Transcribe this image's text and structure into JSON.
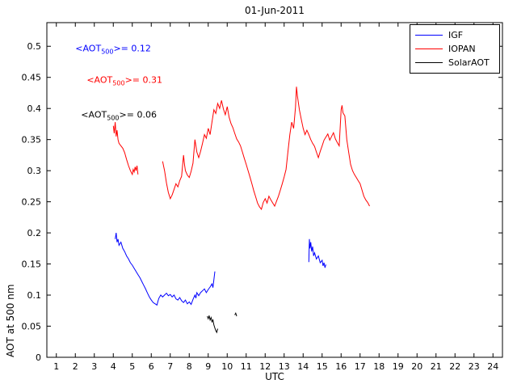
{
  "chart_data": {
    "type": "line",
    "title": "01-Jun-2011",
    "xlabel": "UTC",
    "ylabel": "AOT at 500 nm",
    "xlim": [
      0.5,
      24.5
    ],
    "ylim": [
      0,
      0.538
    ],
    "grid": false,
    "legend_position": "northeast",
    "xtick_labels": [
      "1",
      "2",
      "3",
      "4",
      "5",
      "6",
      "7",
      "8",
      "9",
      "10",
      "11",
      "12",
      "13",
      "14",
      "15",
      "16",
      "17",
      "18",
      "19",
      "20",
      "21",
      "22",
      "23",
      "24"
    ],
    "xtick_values": [
      1,
      2,
      3,
      4,
      5,
      6,
      7,
      8,
      9,
      10,
      11,
      12,
      13,
      14,
      15,
      16,
      17,
      18,
      19,
      20,
      21,
      22,
      23,
      24
    ],
    "ytick_labels": [
      "0",
      "0.05",
      "0.1",
      "0.15",
      "0.2",
      "0.25",
      "0.3",
      "0.35",
      "0.4",
      "0.45",
      "0.5"
    ],
    "ytick_values": [
      0,
      0.05,
      0.1,
      0.15,
      0.2,
      0.25,
      0.3,
      0.35,
      0.4,
      0.45,
      0.5
    ],
    "annotations": [
      {
        "prefix": "<AOT",
        "sub": "500",
        "suffix": ">= 0.12",
        "x": 2.0,
        "y": 0.495,
        "color": "#0000ff"
      },
      {
        "prefix": "<AOT",
        "sub": "500",
        "suffix": ">= 0.31",
        "x": 2.6,
        "y": 0.445,
        "color": "#ff0000"
      },
      {
        "prefix": "<AOT",
        "sub": "500",
        "suffix": ">= 0.06",
        "x": 2.3,
        "y": 0.389,
        "color": "#000000"
      }
    ],
    "series": [
      {
        "name": "IGF",
        "color": "#0000ff",
        "segments": [
          [
            [
              4.1,
              0.19
            ],
            [
              4.15,
              0.2
            ],
            [
              4.2,
              0.185
            ],
            [
              4.25,
              0.19
            ],
            [
              4.3,
              0.18
            ],
            [
              4.4,
              0.185
            ],
            [
              4.5,
              0.175
            ],
            [
              4.6,
              0.17
            ],
            [
              4.7,
              0.163
            ],
            [
              4.8,
              0.158
            ],
            [
              4.9,
              0.152
            ],
            [
              5.0,
              0.148
            ],
            [
              5.1,
              0.143
            ],
            [
              5.2,
              0.138
            ],
            [
              5.3,
              0.133
            ],
            [
              5.4,
              0.128
            ],
            [
              5.5,
              0.122
            ],
            [
              5.6,
              0.116
            ],
            [
              5.7,
              0.11
            ],
            [
              5.8,
              0.103
            ],
            [
              5.9,
              0.097
            ],
            [
              6.0,
              0.092
            ],
            [
              6.1,
              0.088
            ],
            [
              6.2,
              0.086
            ],
            [
              6.3,
              0.084
            ],
            [
              6.35,
              0.09
            ],
            [
              6.4,
              0.095
            ],
            [
              6.5,
              0.1
            ],
            [
              6.6,
              0.097
            ],
            [
              6.7,
              0.1
            ],
            [
              6.8,
              0.103
            ],
            [
              6.9,
              0.099
            ],
            [
              7.0,
              0.101
            ],
            [
              7.1,
              0.097
            ],
            [
              7.2,
              0.1
            ],
            [
              7.3,
              0.094
            ],
            [
              7.4,
              0.092
            ],
            [
              7.5,
              0.096
            ],
            [
              7.6,
              0.091
            ],
            [
              7.7,
              0.088
            ],
            [
              7.8,
              0.092
            ],
            [
              7.9,
              0.086
            ],
            [
              8.0,
              0.089
            ],
            [
              8.1,
              0.085
            ],
            [
              8.2,
              0.093
            ],
            [
              8.3,
              0.1
            ],
            [
              8.35,
              0.095
            ],
            [
              8.4,
              0.104
            ],
            [
              8.5,
              0.099
            ],
            [
              8.6,
              0.104
            ],
            [
              8.7,
              0.107
            ],
            [
              8.8,
              0.11
            ],
            [
              8.9,
              0.104
            ],
            [
              9.0,
              0.109
            ],
            [
              9.1,
              0.113
            ],
            [
              9.2,
              0.118
            ],
            [
              9.25,
              0.112
            ],
            [
              9.3,
              0.125
            ],
            [
              9.35,
              0.138
            ]
          ],
          [
            [
              14.3,
              0.153
            ],
            [
              14.33,
              0.19
            ],
            [
              14.36,
              0.175
            ],
            [
              14.4,
              0.185
            ],
            [
              14.45,
              0.17
            ],
            [
              14.5,
              0.178
            ],
            [
              14.55,
              0.163
            ],
            [
              14.6,
              0.168
            ],
            [
              14.7,
              0.158
            ],
            [
              14.8,
              0.163
            ],
            [
              14.9,
              0.152
            ],
            [
              15.0,
              0.156
            ],
            [
              15.05,
              0.147
            ],
            [
              15.1,
              0.152
            ],
            [
              15.15,
              0.144
            ],
            [
              15.2,
              0.149
            ]
          ]
        ]
      },
      {
        "name": "IOPAN",
        "color": "#ff0000",
        "segments": [
          [
            [
              4.0,
              0.372
            ],
            [
              4.05,
              0.36
            ],
            [
              4.1,
              0.378
            ],
            [
              4.15,
              0.355
            ],
            [
              4.2,
              0.365
            ],
            [
              4.25,
              0.35
            ],
            [
              4.3,
              0.344
            ],
            [
              4.4,
              0.34
            ],
            [
              4.5,
              0.336
            ],
            [
              4.6,
              0.329
            ],
            [
              4.7,
              0.318
            ],
            [
              4.8,
              0.308
            ],
            [
              4.9,
              0.3
            ],
            [
              5.0,
              0.294
            ],
            [
              5.05,
              0.302
            ],
            [
              5.1,
              0.298
            ],
            [
              5.15,
              0.306
            ],
            [
              5.2,
              0.3
            ],
            [
              5.25,
              0.308
            ],
            [
              5.3,
              0.294
            ]
          ],
          [
            [
              6.6,
              0.315
            ],
            [
              6.7,
              0.3
            ],
            [
              6.8,
              0.28
            ],
            [
              6.9,
              0.265
            ],
            [
              7.0,
              0.255
            ],
            [
              7.1,
              0.261
            ],
            [
              7.2,
              0.27
            ],
            [
              7.3,
              0.279
            ],
            [
              7.4,
              0.274
            ],
            [
              7.5,
              0.284
            ],
            [
              7.6,
              0.291
            ],
            [
              7.7,
              0.325
            ],
            [
              7.75,
              0.31
            ],
            [
              7.8,
              0.3
            ],
            [
              7.9,
              0.293
            ],
            [
              8.0,
              0.289
            ],
            [
              8.1,
              0.299
            ],
            [
              8.2,
              0.312
            ],
            [
              8.3,
              0.35
            ],
            [
              8.4,
              0.33
            ],
            [
              8.5,
              0.321
            ],
            [
              8.6,
              0.331
            ],
            [
              8.7,
              0.344
            ],
            [
              8.8,
              0.358
            ],
            [
              8.9,
              0.352
            ],
            [
              9.0,
              0.368
            ],
            [
              9.1,
              0.358
            ],
            [
              9.2,
              0.378
            ],
            [
              9.3,
              0.398
            ],
            [
              9.4,
              0.392
            ],
            [
              9.5,
              0.408
            ],
            [
              9.6,
              0.4
            ],
            [
              9.7,
              0.413
            ],
            [
              9.8,
              0.399
            ],
            [
              9.9,
              0.39
            ],
            [
              10.0,
              0.403
            ],
            [
              10.1,
              0.386
            ],
            [
              10.2,
              0.376
            ],
            [
              10.3,
              0.369
            ],
            [
              10.4,
              0.36
            ],
            [
              10.5,
              0.351
            ],
            [
              10.6,
              0.346
            ],
            [
              10.7,
              0.34
            ],
            [
              10.8,
              0.33
            ],
            [
              10.9,
              0.32
            ],
            [
              11.0,
              0.31
            ],
            [
              11.1,
              0.3
            ],
            [
              11.2,
              0.29
            ],
            [
              11.3,
              0.279
            ],
            [
              11.4,
              0.268
            ],
            [
              11.5,
              0.258
            ],
            [
              11.6,
              0.248
            ],
            [
              11.7,
              0.242
            ],
            [
              11.8,
              0.238
            ],
            [
              11.9,
              0.249
            ],
            [
              12.0,
              0.255
            ],
            [
              12.1,
              0.248
            ],
            [
              12.2,
              0.259
            ],
            [
              12.3,
              0.253
            ],
            [
              12.4,
              0.248
            ],
            [
              12.5,
              0.243
            ],
            [
              12.6,
              0.251
            ],
            [
              12.7,
              0.259
            ],
            [
              12.8,
              0.269
            ],
            [
              12.9,
              0.279
            ],
            [
              13.0,
              0.29
            ],
            [
              13.1,
              0.302
            ],
            [
              13.2,
              0.33
            ],
            [
              13.3,
              0.358
            ],
            [
              13.4,
              0.378
            ],
            [
              13.5,
              0.368
            ],
            [
              13.6,
              0.402
            ],
            [
              13.65,
              0.435
            ],
            [
              13.7,
              0.42
            ],
            [
              13.8,
              0.398
            ],
            [
              13.9,
              0.383
            ],
            [
              14.0,
              0.368
            ],
            [
              14.1,
              0.358
            ],
            [
              14.2,
              0.365
            ],
            [
              14.3,
              0.358
            ],
            [
              14.4,
              0.35
            ],
            [
              14.5,
              0.344
            ],
            [
              14.6,
              0.339
            ],
            [
              14.7,
              0.33
            ],
            [
              14.8,
              0.321
            ],
            [
              14.9,
              0.331
            ],
            [
              15.0,
              0.34
            ],
            [
              15.1,
              0.349
            ],
            [
              15.2,
              0.354
            ],
            [
              15.3,
              0.359
            ],
            [
              15.4,
              0.349
            ],
            [
              15.5,
              0.355
            ],
            [
              15.6,
              0.361
            ],
            [
              15.7,
              0.351
            ],
            [
              15.8,
              0.345
            ],
            [
              15.9,
              0.34
            ],
            [
              16.0,
              0.398
            ],
            [
              16.05,
              0.405
            ],
            [
              16.1,
              0.393
            ],
            [
              16.2,
              0.388
            ],
            [
              16.3,
              0.35
            ],
            [
              16.4,
              0.33
            ],
            [
              16.5,
              0.31
            ],
            [
              16.6,
              0.3
            ],
            [
              16.7,
              0.294
            ],
            [
              16.8,
              0.289
            ],
            [
              16.9,
              0.284
            ],
            [
              17.0,
              0.279
            ],
            [
              17.1,
              0.269
            ],
            [
              17.2,
              0.259
            ],
            [
              17.3,
              0.253
            ],
            [
              17.4,
              0.249
            ],
            [
              17.5,
              0.243
            ]
          ]
        ]
      },
      {
        "name": "SolarAOT",
        "color": "#000000",
        "segments": [
          [
            [
              8.95,
              0.066
            ],
            [
              9.0,
              0.062
            ],
            [
              9.05,
              0.067
            ],
            [
              9.1,
              0.06
            ],
            [
              9.15,
              0.064
            ],
            [
              9.2,
              0.057
            ],
            [
              9.25,
              0.06
            ],
            [
              9.3,
              0.052
            ],
            [
              9.35,
              0.047
            ],
            [
              9.4,
              0.043
            ],
            [
              9.45,
              0.04
            ],
            [
              9.5,
              0.046
            ]
          ],
          [
            [
              10.4,
              0.068
            ],
            [
              10.45,
              0.071
            ],
            [
              10.5,
              0.066
            ]
          ]
        ]
      }
    ]
  }
}
